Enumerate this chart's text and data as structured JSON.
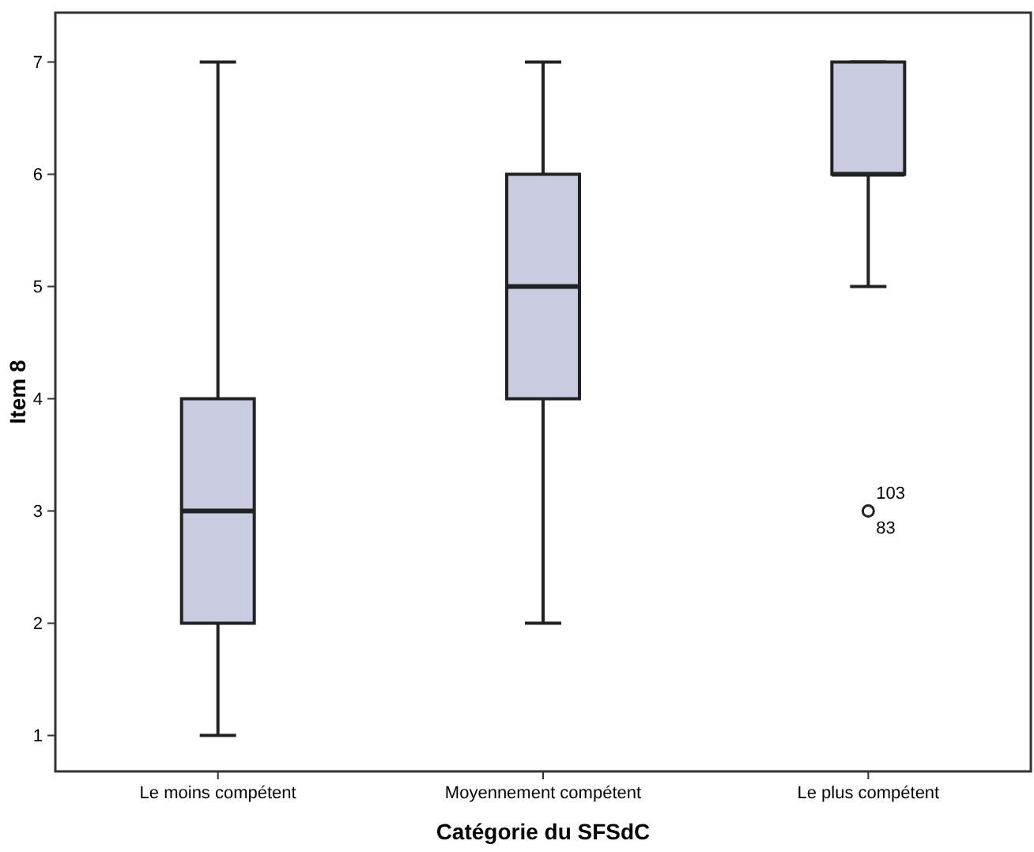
{
  "chart_data": {
    "type": "box",
    "xlabel": "Catégorie du SFSdC",
    "ylabel": "Item 8",
    "categories": [
      "Le moins compétent",
      "Moyennement compétent",
      "Le plus compétent"
    ],
    "boxes": [
      {
        "low": 1,
        "q1": 2,
        "median": 3,
        "q3": 4,
        "high": 7
      },
      {
        "low": 2,
        "q1": 4,
        "median": 5,
        "q3": 6,
        "high": 7
      },
      {
        "low": 5,
        "q1": 6,
        "median": 6,
        "q3": 7,
        "high": 7,
        "outliers": [
          3
        ]
      }
    ],
    "color": "#c9cbe0",
    "ylim": [
      0.68,
      7.44
    ],
    "yticks": [
      1,
      2,
      3,
      4,
      5,
      6,
      7
    ],
    "grid": false,
    "annotations": [
      "103",
      "83"
    ]
  }
}
